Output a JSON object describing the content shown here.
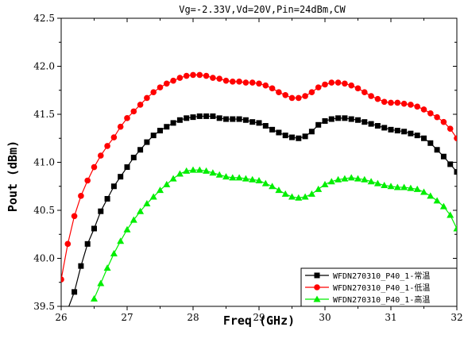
{
  "chart_data": {
    "type": "line",
    "title": "Vg=-2.33V,Vd=20V,Pin=24dBm,CW",
    "xlabel": "Freq (GHz)",
    "ylabel": "Pout (dBm)",
    "xlim": [
      26,
      32
    ],
    "ylim": [
      39.5,
      42.5
    ],
    "x_ticks": [
      "26",
      "27",
      "28",
      "29",
      "30",
      "31",
      "32"
    ],
    "y_ticks": [
      "39.5",
      "40.0",
      "40.5",
      "41.0",
      "41.5",
      "42.0",
      "42.5"
    ],
    "grid": false,
    "legend_position": "bottom-right",
    "series": [
      {
        "name": "WFDN270310_P40_1-常温",
        "color": "#000000",
        "marker": "square",
        "x": [
          26.1,
          26.2,
          26.3,
          26.4,
          26.5,
          26.6,
          26.7,
          26.8,
          26.9,
          27.0,
          27.1,
          27.2,
          27.3,
          27.4,
          27.5,
          27.6,
          27.7,
          27.8,
          27.9,
          28.0,
          28.1,
          28.2,
          28.3,
          28.4,
          28.5,
          28.6,
          28.7,
          28.8,
          28.9,
          29.0,
          29.1,
          29.2,
          29.3,
          29.4,
          29.5,
          29.6,
          29.7,
          29.8,
          29.9,
          30.0,
          30.1,
          30.2,
          30.3,
          30.4,
          30.5,
          30.6,
          30.7,
          30.8,
          30.9,
          31.0,
          31.1,
          31.2,
          31.3,
          31.4,
          31.5,
          31.6,
          31.7,
          31.8,
          31.9,
          32.0
        ],
        "y": [
          39.47,
          39.65,
          39.92,
          40.15,
          40.31,
          40.49,
          40.62,
          40.75,
          40.85,
          40.95,
          41.05,
          41.13,
          41.21,
          41.28,
          41.33,
          41.37,
          41.41,
          41.44,
          41.46,
          41.47,
          41.48,
          41.48,
          41.48,
          41.46,
          41.45,
          41.45,
          41.45,
          41.44,
          41.42,
          41.41,
          41.38,
          41.34,
          41.31,
          41.28,
          41.26,
          41.25,
          41.27,
          41.32,
          41.39,
          41.43,
          41.45,
          41.46,
          41.46,
          41.45,
          41.44,
          41.42,
          41.4,
          41.38,
          41.36,
          41.34,
          41.33,
          41.32,
          41.3,
          41.28,
          41.25,
          41.2,
          41.13,
          41.06,
          40.98,
          40.9
        ]
      },
      {
        "name": "WFDN270310_P40_1-低温",
        "color": "#ff0000",
        "marker": "circle",
        "x": [
          26.0,
          26.1,
          26.2,
          26.3,
          26.4,
          26.5,
          26.6,
          26.7,
          26.8,
          26.9,
          27.0,
          27.1,
          27.2,
          27.3,
          27.4,
          27.5,
          27.6,
          27.7,
          27.8,
          27.9,
          28.0,
          28.1,
          28.2,
          28.3,
          28.4,
          28.5,
          28.6,
          28.7,
          28.8,
          28.9,
          29.0,
          29.1,
          29.2,
          29.3,
          29.4,
          29.5,
          29.6,
          29.7,
          29.8,
          29.9,
          30.0,
          30.1,
          30.2,
          30.3,
          30.4,
          30.5,
          30.6,
          30.7,
          30.8,
          30.9,
          31.0,
          31.1,
          31.2,
          31.3,
          31.4,
          31.5,
          31.6,
          31.7,
          31.8,
          31.9,
          32.0
        ],
        "y": [
          39.78,
          40.15,
          40.44,
          40.65,
          40.81,
          40.95,
          41.07,
          41.17,
          41.26,
          41.37,
          41.46,
          41.53,
          41.6,
          41.67,
          41.73,
          41.78,
          41.82,
          41.85,
          41.88,
          41.9,
          41.91,
          41.91,
          41.9,
          41.88,
          41.87,
          41.85,
          41.84,
          41.84,
          41.83,
          41.83,
          41.82,
          41.8,
          41.77,
          41.73,
          41.7,
          41.67,
          41.67,
          41.69,
          41.73,
          41.78,
          41.81,
          41.83,
          41.83,
          41.82,
          41.8,
          41.77,
          41.73,
          41.69,
          41.66,
          41.63,
          41.62,
          41.62,
          41.61,
          41.6,
          41.58,
          41.55,
          41.51,
          41.47,
          41.42,
          41.35,
          41.25
        ]
      },
      {
        "name": "WFDN270310_P40_1-高温",
        "color": "#00ee00",
        "marker": "triangle",
        "x": [
          26.5,
          26.6,
          26.7,
          26.8,
          26.9,
          27.0,
          27.1,
          27.2,
          27.3,
          27.4,
          27.5,
          27.6,
          27.7,
          27.8,
          27.9,
          28.0,
          28.1,
          28.2,
          28.3,
          28.4,
          28.5,
          28.6,
          28.7,
          28.8,
          28.9,
          29.0,
          29.1,
          29.2,
          29.3,
          29.4,
          29.5,
          29.6,
          29.7,
          29.8,
          29.9,
          30.0,
          30.1,
          30.2,
          30.3,
          30.4,
          30.5,
          30.6,
          30.7,
          30.8,
          30.9,
          31.0,
          31.1,
          31.2,
          31.3,
          31.4,
          31.5,
          31.6,
          31.7,
          31.8,
          31.9,
          32.0
        ],
        "y": [
          39.58,
          39.74,
          39.9,
          40.05,
          40.18,
          40.3,
          40.4,
          40.49,
          40.57,
          40.64,
          40.71,
          40.77,
          40.83,
          40.88,
          40.91,
          40.92,
          40.92,
          40.91,
          40.89,
          40.87,
          40.85,
          40.84,
          40.84,
          40.83,
          40.82,
          40.81,
          40.78,
          40.75,
          40.71,
          40.67,
          40.64,
          40.63,
          40.64,
          40.67,
          40.72,
          40.77,
          40.8,
          40.82,
          40.83,
          40.84,
          40.83,
          40.82,
          40.8,
          40.78,
          40.76,
          40.75,
          40.74,
          40.74,
          40.73,
          40.72,
          40.69,
          40.65,
          40.6,
          40.54,
          40.45,
          40.31
        ]
      }
    ]
  }
}
